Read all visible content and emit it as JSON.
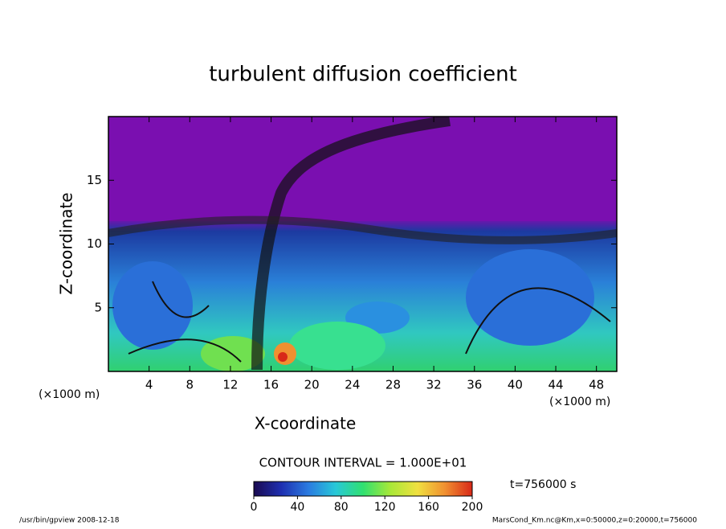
{
  "chart_data": {
    "type": "contour",
    "title": "turbulent diffusion coefficient",
    "xlabel": "X-coordinate",
    "ylabel": "Z-coordinate",
    "xunit": "(×1000 m)",
    "yunit": "(×1000 m)",
    "xlim": [
      0,
      50
    ],
    "xticks": [
      4,
      8,
      12,
      16,
      20,
      24,
      28,
      32,
      36,
      40,
      44,
      48
    ],
    "ylim": [
      0,
      20
    ],
    "yticks": [
      5,
      10,
      15
    ],
    "colorbar": {
      "lim": [
        0,
        200
      ],
      "ticks": [
        0,
        40,
        80,
        120,
        160,
        200
      ],
      "colors": [
        "#1a0a50",
        "#1e2fb0",
        "#2b7be0",
        "#28c8d8",
        "#30e070",
        "#a8e838",
        "#f0e040",
        "#f09030",
        "#d82818"
      ]
    },
    "annotations": {
      "contour_interval": "CONTOUR INTERVAL = 1.000E+01",
      "time": "t=756000 s",
      "footer_left": "/usr/bin/gpview  2008-12-18",
      "footer_right": "MarsCond_Km.nc@Km,x=0:50000,z=0:20000,t=756000"
    }
  }
}
